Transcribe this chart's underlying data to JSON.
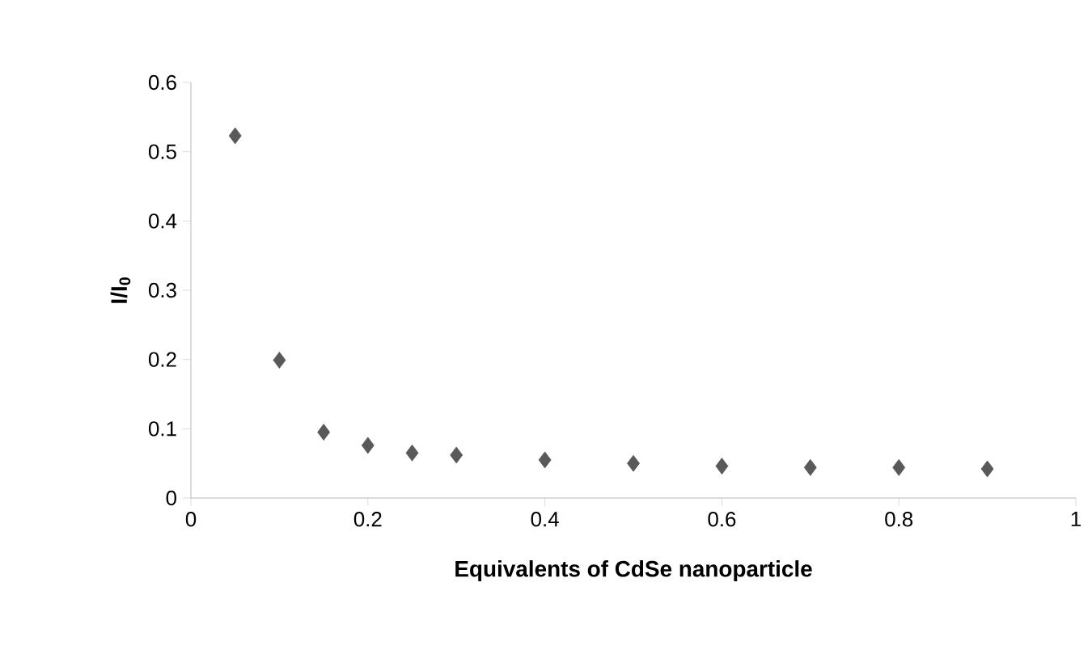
{
  "chart_data": {
    "type": "scatter",
    "xlabel": "Equivalents of CdSe nanoparticle",
    "ylabel": "I/I$_{0}$",
    "x": [
      0.05,
      0.1,
      0.15,
      0.2,
      0.25,
      0.3,
      0.4,
      0.5,
      0.6,
      0.7,
      0.8,
      0.9
    ],
    "values": [
      0.523,
      0.199,
      0.095,
      0.076,
      0.065,
      0.062,
      0.055,
      0.05,
      0.046,
      0.044,
      0.044,
      0.042
    ],
    "color": "#595959",
    "marker": "diamond",
    "xlim": [
      0,
      1
    ],
    "xticks": [
      0,
      0.2,
      0.4,
      0.6,
      0.8,
      1
    ],
    "ylim": [
      0,
      0.6
    ],
    "yticks": [
      0,
      0.1,
      0.2,
      0.3,
      0.4,
      0.5,
      0.6
    ]
  }
}
